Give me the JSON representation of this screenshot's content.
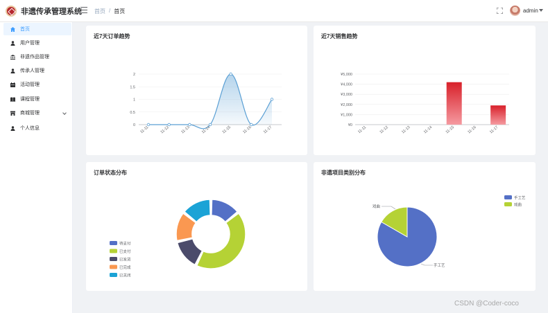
{
  "app": {
    "title": "非遗传承管理系统"
  },
  "breadcrumb": {
    "home": "首页",
    "sep": "/",
    "current": "首页"
  },
  "user": {
    "name": "admin"
  },
  "sidebar": {
    "items": [
      {
        "label": "首页",
        "icon": "home-icon",
        "active": true
      },
      {
        "label": "用户管理",
        "icon": "user-icon"
      },
      {
        "label": "非遗作品管理",
        "icon": "bank-icon"
      },
      {
        "label": "传承人管理",
        "icon": "user-icon"
      },
      {
        "label": "活动管理",
        "icon": "calendar-icon"
      },
      {
        "label": "课程管理",
        "icon": "book-icon"
      },
      {
        "label": "商城管理",
        "icon": "shop-icon",
        "has_children": true
      },
      {
        "label": "个人信息",
        "icon": "user-icon"
      }
    ]
  },
  "cards": {
    "orders_trend": {
      "title": "近7天订单趋势"
    },
    "sales_trend": {
      "title": "近7天销售趋势"
    },
    "order_status": {
      "title": "订单状态分布"
    },
    "category": {
      "title": "非遗项目类别分布"
    }
  },
  "watermark": "CSDN @Coder-coco",
  "colors": {
    "accent": "#409eff",
    "line": "#5a9fd4",
    "bar": "#e63946"
  },
  "chart_data": [
    {
      "type": "line",
      "title": "近7天订单趋势",
      "x": [
        "11-11",
        "11-12",
        "11-13",
        "11-14",
        "11-15",
        "11-16",
        "11-17"
      ],
      "series": [
        {
          "values": [
            0,
            0,
            0,
            0,
            2,
            0,
            1
          ]
        }
      ],
      "yticks": [
        "0",
        "0.5",
        "1",
        "1.5",
        "2"
      ],
      "ylim": [
        0,
        2
      ],
      "smooth": true,
      "area": true
    },
    {
      "type": "bar",
      "title": "近7天销售趋势",
      "categories": [
        "11-11",
        "11-12",
        "11-13",
        "11-14",
        "11-15",
        "11-16",
        "11-17"
      ],
      "values": [
        0,
        0,
        0,
        0,
        4200,
        0,
        1900
      ],
      "yticks": [
        "¥0",
        "¥1,000",
        "¥2,000",
        "¥3,000",
        "¥4,000",
        "¥5,000"
      ],
      "ylim": [
        0,
        5000
      ]
    },
    {
      "type": "pie",
      "variant": "donut",
      "title": "订单状态分布",
      "legend_position": "bottom-left",
      "slices": [
        {
          "name": "待支付",
          "value": 1,
          "color": "#5470c6"
        },
        {
          "name": "已支付",
          "value": 3,
          "color": "#b5d235"
        },
        {
          "name": "已发货",
          "value": 1,
          "color": "#4b4b6b"
        },
        {
          "name": "已完成",
          "value": 1,
          "color": "#fa9851"
        },
        {
          "name": "已关闭",
          "value": 1,
          "color": "#1ba3d6"
        }
      ]
    },
    {
      "type": "pie",
      "title": "非遗项目类别分布",
      "legend_position": "top-right",
      "slices": [
        {
          "name": "手工艺",
          "value": 5,
          "color": "#5470c6"
        },
        {
          "name": "戏曲",
          "value": 1,
          "color": "#b5d235"
        }
      ]
    }
  ]
}
